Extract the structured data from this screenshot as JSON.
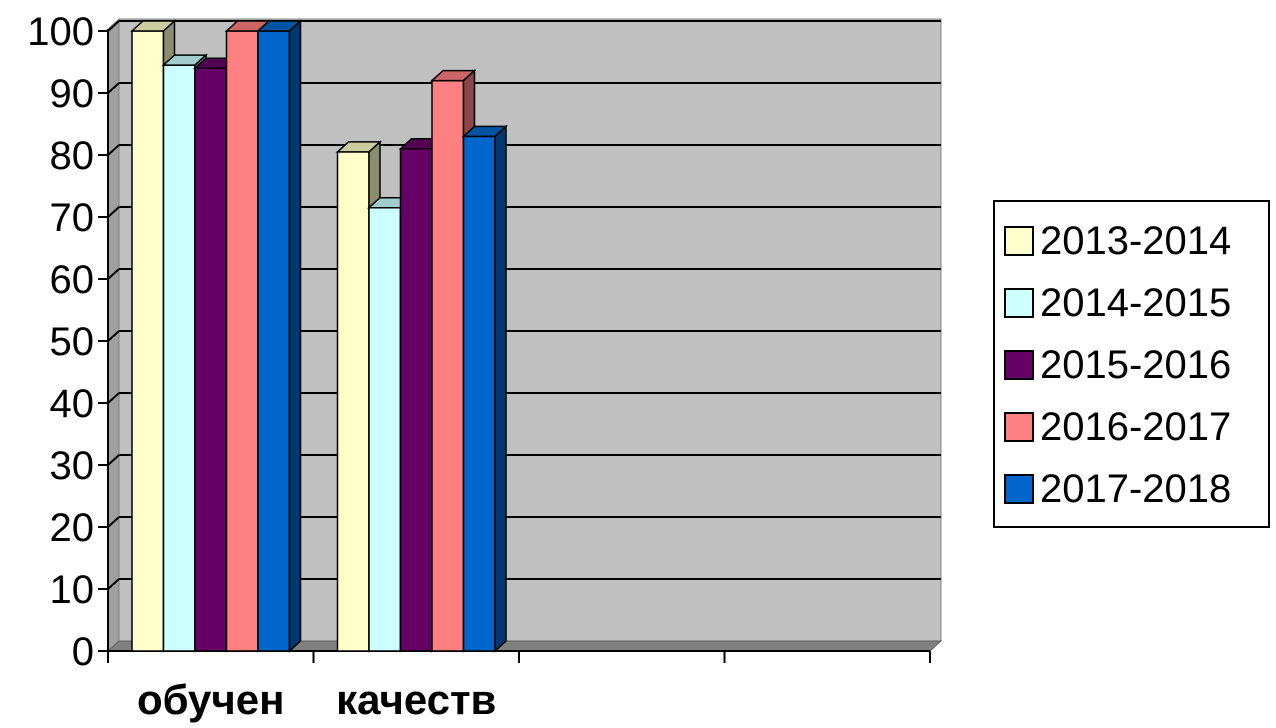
{
  "chart_data": {
    "type": "bar",
    "categories": [
      "обучен",
      "качеств",
      "",
      ""
    ],
    "series": [
      {
        "name": "2013-2014",
        "color": "#ffffcc",
        "values": [
          100,
          80.5,
          null,
          null
        ]
      },
      {
        "name": "2014-2015",
        "color": "#ccffff",
        "values": [
          94.5,
          71.5,
          null,
          null
        ]
      },
      {
        "name": "2015-2016",
        "color": "#660066",
        "values": [
          94,
          81,
          null,
          null
        ]
      },
      {
        "name": "2016-2017",
        "color": "#ff8080",
        "values": [
          100,
          92,
          null,
          null
        ]
      },
      {
        "name": "2017-2018",
        "color": "#0066cc",
        "values": [
          100,
          83,
          null,
          null
        ]
      }
    ],
    "y_ticks": [
      "0",
      "10",
      "20",
      "30",
      "40",
      "50",
      "60",
      "70",
      "80",
      "90",
      "100"
    ],
    "ylim": [
      0,
      100
    ],
    "grid": true,
    "legend_position": "right",
    "plot_background": "#c0c0c0"
  }
}
